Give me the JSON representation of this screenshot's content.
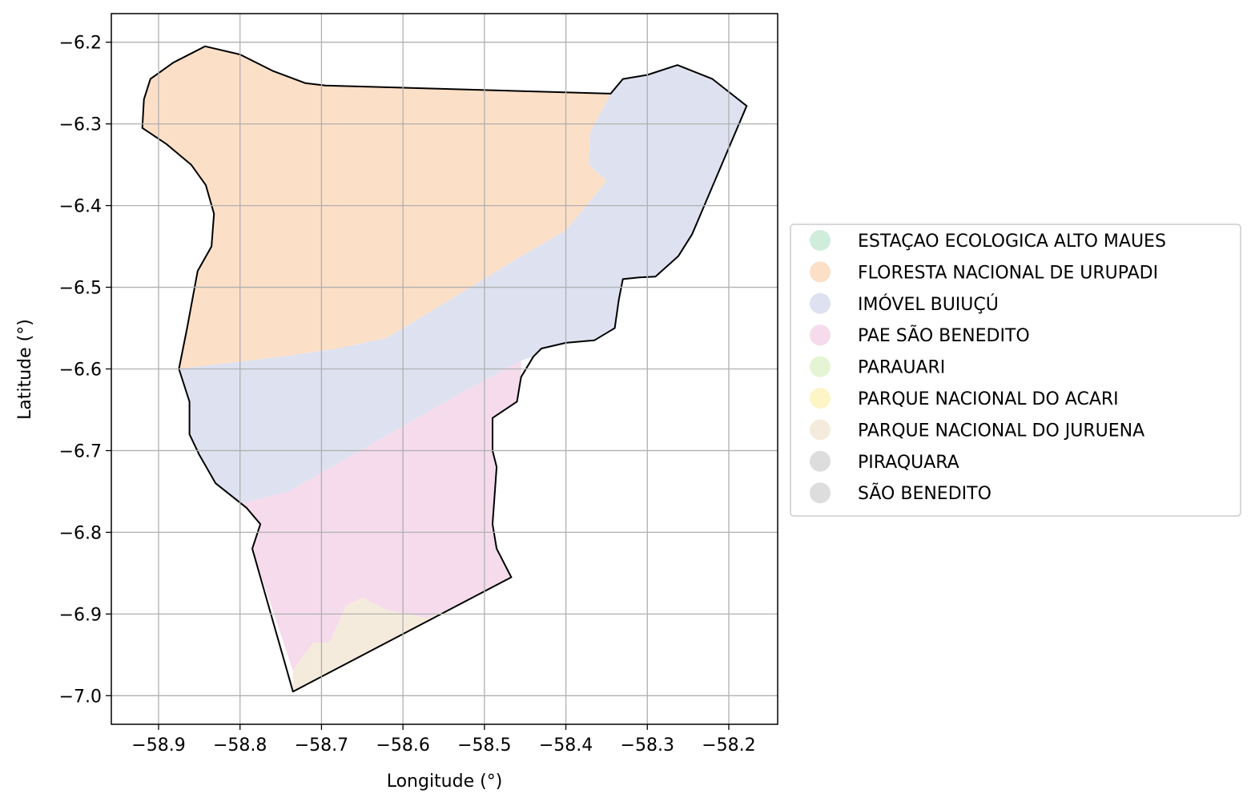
{
  "chart_data": {
    "type": "map",
    "xlabel": "Longitude (°)",
    "ylabel": "Latitude (°)",
    "xlim": [
      -58.958,
      -58.14
    ],
    "ylim": [
      -7.035,
      -6.165
    ],
    "xticks": [
      -58.9,
      -58.8,
      -58.7,
      -58.6,
      -58.5,
      -58.4,
      -58.3,
      -58.2
    ],
    "yticks": [
      -6.2,
      -6.3,
      -6.4,
      -6.5,
      -6.6,
      -6.7,
      -6.8,
      -6.9,
      -7.0
    ],
    "grid": true,
    "legend_position": "right",
    "boundary_color": "#000000",
    "boundary": [
      [
        -58.843,
        -6.205
      ],
      [
        -58.8,
        -6.215
      ],
      [
        -58.76,
        -6.235
      ],
      [
        -58.72,
        -6.25
      ],
      [
        -58.695,
        -6.253
      ],
      [
        -58.345,
        -6.263
      ],
      [
        -58.33,
        -6.245
      ],
      [
        -58.3,
        -6.24
      ],
      [
        -58.263,
        -6.228
      ],
      [
        -58.22,
        -6.245
      ],
      [
        -58.178,
        -6.278
      ],
      [
        -58.245,
        -6.435
      ],
      [
        -58.262,
        -6.462
      ],
      [
        -58.29,
        -6.487
      ],
      [
        -58.31,
        -6.488
      ],
      [
        -58.33,
        -6.49
      ],
      [
        -58.335,
        -6.515
      ],
      [
        -58.34,
        -6.55
      ],
      [
        -58.365,
        -6.565
      ],
      [
        -58.4,
        -6.568
      ],
      [
        -58.43,
        -6.575
      ],
      [
        -58.44,
        -6.585
      ],
      [
        -58.455,
        -6.61
      ],
      [
        -58.46,
        -6.64
      ],
      [
        -58.49,
        -6.66
      ],
      [
        -58.49,
        -6.7
      ],
      [
        -58.485,
        -6.72
      ],
      [
        -58.49,
        -6.79
      ],
      [
        -58.485,
        -6.82
      ],
      [
        -58.467,
        -6.855
      ],
      [
        -58.735,
        -6.995
      ],
      [
        -58.785,
        -6.82
      ],
      [
        -58.775,
        -6.79
      ],
      [
        -58.792,
        -6.77
      ],
      [
        -58.83,
        -6.74
      ],
      [
        -58.85,
        -6.705
      ],
      [
        -58.862,
        -6.68
      ],
      [
        -58.862,
        -6.64
      ],
      [
        -58.875,
        -6.6
      ],
      [
        -58.865,
        -6.55
      ],
      [
        -58.852,
        -6.48
      ],
      [
        -58.835,
        -6.45
      ],
      [
        -58.832,
        -6.41
      ],
      [
        -58.842,
        -6.375
      ],
      [
        -58.86,
        -6.35
      ],
      [
        -58.89,
        -6.325
      ],
      [
        -58.92,
        -6.305
      ],
      [
        -58.918,
        -6.27
      ],
      [
        -58.91,
        -6.245
      ],
      [
        -58.882,
        -6.225
      ]
    ],
    "regions": [
      {
        "name": "FLORESTA NACIONAL DE URUPADI",
        "color": "#fcdfc7",
        "polygon": [
          [
            -58.843,
            -6.205
          ],
          [
            -58.8,
            -6.215
          ],
          [
            -58.76,
            -6.235
          ],
          [
            -58.72,
            -6.25
          ],
          [
            -58.695,
            -6.253
          ],
          [
            -58.345,
            -6.263
          ],
          [
            -58.37,
            -6.31
          ],
          [
            -58.372,
            -6.35
          ],
          [
            -58.35,
            -6.37
          ],
          [
            -58.4,
            -6.43
          ],
          [
            -58.46,
            -6.465
          ],
          [
            -58.55,
            -6.52
          ],
          [
            -58.62,
            -6.562
          ],
          [
            -58.68,
            -6.575
          ],
          [
            -58.75,
            -6.585
          ],
          [
            -58.876,
            -6.6
          ],
          [
            -58.865,
            -6.55
          ],
          [
            -58.852,
            -6.48
          ],
          [
            -58.835,
            -6.45
          ],
          [
            -58.832,
            -6.41
          ],
          [
            -58.842,
            -6.375
          ],
          [
            -58.86,
            -6.35
          ],
          [
            -58.89,
            -6.325
          ],
          [
            -58.92,
            -6.305
          ],
          [
            -58.918,
            -6.27
          ],
          [
            -58.91,
            -6.245
          ],
          [
            -58.882,
            -6.225
          ]
        ]
      },
      {
        "name": "IMÓVEL BUIUÇÚ",
        "color": "#dee2f0",
        "polygon": [
          [
            -58.345,
            -6.263
          ],
          [
            -58.33,
            -6.245
          ],
          [
            -58.3,
            -6.24
          ],
          [
            -58.263,
            -6.228
          ],
          [
            -58.22,
            -6.245
          ],
          [
            -58.178,
            -6.278
          ],
          [
            -58.245,
            -6.435
          ],
          [
            -58.262,
            -6.462
          ],
          [
            -58.29,
            -6.487
          ],
          [
            -58.31,
            -6.488
          ],
          [
            -58.33,
            -6.49
          ],
          [
            -58.335,
            -6.515
          ],
          [
            -58.34,
            -6.55
          ],
          [
            -58.365,
            -6.565
          ],
          [
            -58.4,
            -6.568
          ],
          [
            -58.43,
            -6.575
          ],
          [
            -58.44,
            -6.585
          ],
          [
            -58.455,
            -6.59
          ],
          [
            -58.53,
            -6.63
          ],
          [
            -58.6,
            -6.67
          ],
          [
            -58.67,
            -6.71
          ],
          [
            -58.74,
            -6.75
          ],
          [
            -58.8,
            -6.765
          ],
          [
            -58.83,
            -6.74
          ],
          [
            -58.85,
            -6.705
          ],
          [
            -58.862,
            -6.68
          ],
          [
            -58.862,
            -6.64
          ],
          [
            -58.876,
            -6.6
          ],
          [
            -58.75,
            -6.585
          ],
          [
            -58.68,
            -6.575
          ],
          [
            -58.62,
            -6.562
          ],
          [
            -58.55,
            -6.52
          ],
          [
            -58.46,
            -6.465
          ],
          [
            -58.4,
            -6.43
          ],
          [
            -58.35,
            -6.37
          ],
          [
            -58.372,
            -6.35
          ],
          [
            -58.37,
            -6.31
          ]
        ]
      },
      {
        "name": "PAE SÃO BENEDITO",
        "color": "#f5dbec",
        "polygon": [
          [
            -58.455,
            -6.59
          ],
          [
            -58.455,
            -6.61
          ],
          [
            -58.46,
            -6.64
          ],
          [
            -58.49,
            -6.66
          ],
          [
            -58.49,
            -6.7
          ],
          [
            -58.485,
            -6.72
          ],
          [
            -58.49,
            -6.79
          ],
          [
            -58.485,
            -6.82
          ],
          [
            -58.467,
            -6.855
          ],
          [
            -58.53,
            -6.888
          ],
          [
            -58.57,
            -6.905
          ],
          [
            -58.62,
            -6.895
          ],
          [
            -58.65,
            -6.88
          ],
          [
            -58.67,
            -6.89
          ],
          [
            -58.69,
            -6.935
          ],
          [
            -58.71,
            -6.935
          ],
          [
            -58.725,
            -6.955
          ],
          [
            -58.735,
            -6.97
          ],
          [
            -58.785,
            -6.82
          ],
          [
            -58.775,
            -6.79
          ],
          [
            -58.792,
            -6.77
          ],
          [
            -58.8,
            -6.765
          ],
          [
            -58.74,
            -6.75
          ],
          [
            -58.67,
            -6.71
          ],
          [
            -58.6,
            -6.67
          ],
          [
            -58.53,
            -6.63
          ]
        ]
      },
      {
        "name": "PARQUE NACIONAL DO JURUENA",
        "color": "#f5ebdc",
        "polygon": [
          [
            -58.467,
            -6.855
          ],
          [
            -58.53,
            -6.888
          ],
          [
            -58.57,
            -6.905
          ],
          [
            -58.62,
            -6.895
          ],
          [
            -58.65,
            -6.88
          ],
          [
            -58.67,
            -6.89
          ],
          [
            -58.69,
            -6.935
          ],
          [
            -58.71,
            -6.935
          ],
          [
            -58.725,
            -6.955
          ],
          [
            -58.735,
            -6.97
          ],
          [
            -58.735,
            -6.995
          ]
        ]
      }
    ],
    "legend": [
      {
        "name": "ESTAÇAO ECOLOGICA ALTO MAUES",
        "color": "#d0eddc"
      },
      {
        "name": "FLORESTA NACIONAL DE URUPADI",
        "color": "#fcdfc7"
      },
      {
        "name": "IMÓVEL BUIUÇÚ",
        "color": "#dee2f0"
      },
      {
        "name": "PAE SÃO BENEDITO",
        "color": "#f5dbec"
      },
      {
        "name": "PARAUARI",
        "color": "#e5f5d3"
      },
      {
        "name": "PARQUE NACIONAL DO ACARI",
        "color": "#fdf5c6"
      },
      {
        "name": "PARQUE NACIONAL DO JURUENA",
        "color": "#f5ebdc"
      },
      {
        "name": "PIRAQUARA",
        "color": "#dddddd"
      },
      {
        "name": "SÃO BENEDITO",
        "color": "#dddddd"
      }
    ]
  }
}
